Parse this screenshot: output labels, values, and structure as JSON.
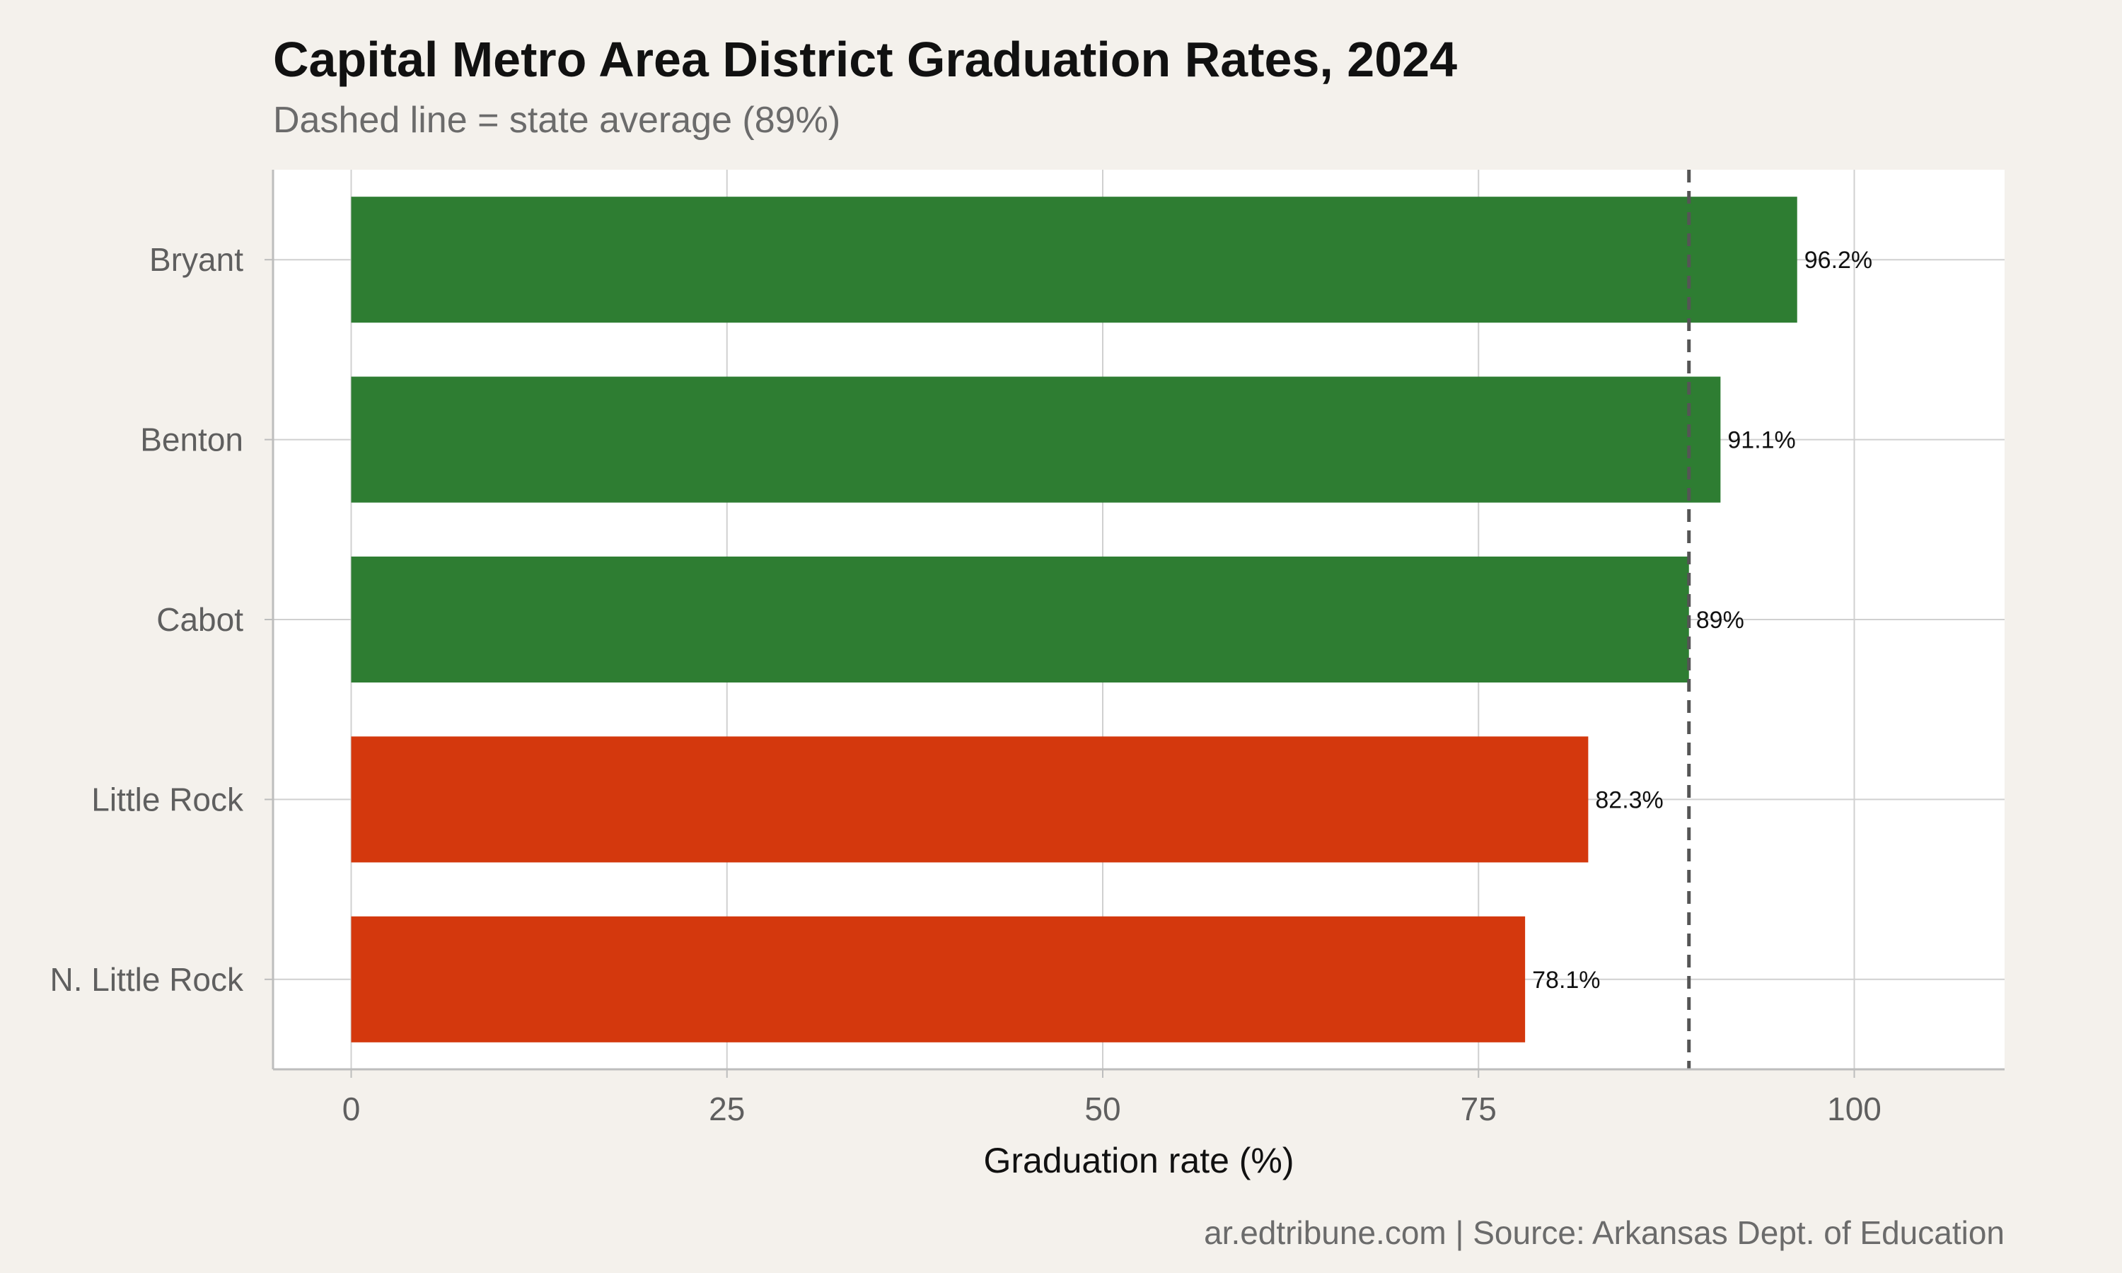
{
  "chart_data": {
    "type": "bar",
    "orientation": "horizontal",
    "title": "Capital Metro Area District Graduation Rates, 2024",
    "subtitle": "Dashed line = state average (89%)",
    "xlabel": "Graduation rate (%)",
    "ylabel": "",
    "caption": "ar.edtribune.com | Source: Arkansas Dept. of Education",
    "xlim": [
      -5.2,
      110
    ],
    "xticks": [
      0,
      25,
      50,
      75,
      100
    ],
    "grid": true,
    "categories": [
      "Bryant",
      "Benton",
      "Cabot",
      "Little Rock",
      "N. Little Rock"
    ],
    "values": [
      96.2,
      91.1,
      89,
      82.3,
      78.1
    ],
    "value_labels": [
      "96.2%",
      "91.1%",
      "89%",
      "82.3%",
      "78.1%"
    ],
    "bar_colors": [
      "#2e7d32",
      "#2e7d32",
      "#2e7d32",
      "#d4380d",
      "#d4380d"
    ],
    "reference_line": {
      "value": 89,
      "style": "dashed",
      "color": "#555555"
    },
    "colors": {
      "above_average": "#2e7d32",
      "below_average": "#d4380d",
      "panel_background": "#ffffff",
      "page_background": "#f4f1ec",
      "grid": "#d0d0d0"
    }
  }
}
